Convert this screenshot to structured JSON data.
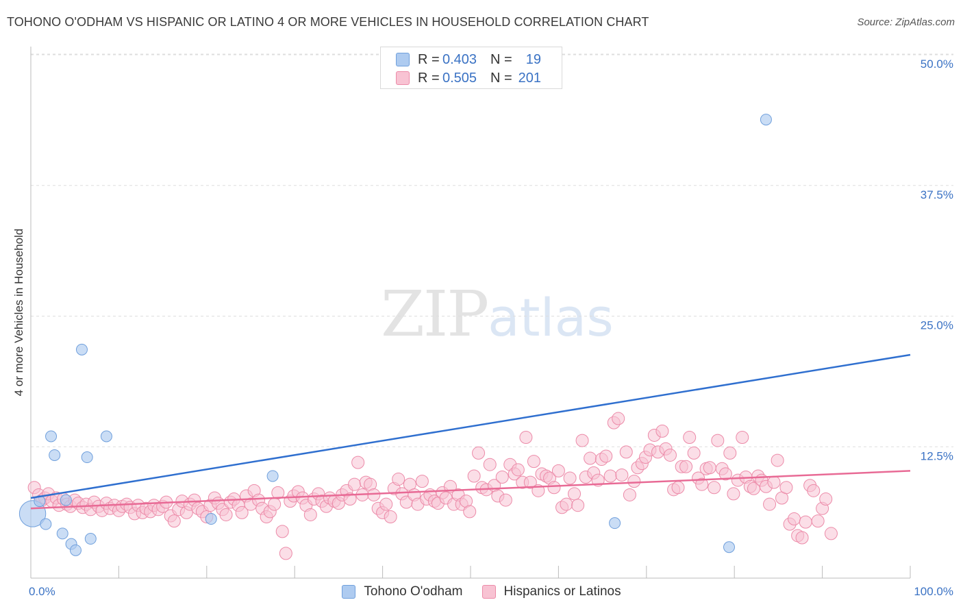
{
  "header": {
    "title": "TOHONO O'ODHAM VS HISPANIC OR LATINO 4 OR MORE VEHICLES IN HOUSEHOLD CORRELATION CHART",
    "source": "Source: ZipAtlas.com"
  },
  "watermark": {
    "zip": "ZIP",
    "atlas": "atlas"
  },
  "legend": {
    "series": [
      {
        "r_label": "R =",
        "r_value": "0.403",
        "n_label": "N =",
        "n_value": "19",
        "color": "#aecbf0",
        "border": "#6f9fdc"
      },
      {
        "r_label": "R =",
        "r_value": "0.505",
        "n_label": "N =",
        "n_value": "201",
        "color": "#f8c3d3",
        "border": "#ec8aa8"
      }
    ]
  },
  "colors": {
    "blue_fill": "#aecbf0",
    "blue_stroke": "#6f9fdc",
    "blue_line": "#2f6fcf",
    "pink_fill": "#f8c3d3",
    "pink_stroke": "#ec8aa8",
    "pink_line": "#e86a95",
    "tick_label": "#3a72c4",
    "grid": "#dddddd"
  },
  "chart_data": {
    "type": "scatter",
    "title": "TOHONO O'ODHAM VS HISPANIC OR LATINO 4 OR MORE VEHICLES IN HOUSEHOLD CORRELATION CHART",
    "xlabel": "",
    "ylabel": "4 or more Vehicles in Household",
    "xlim": [
      0,
      100
    ],
    "ylim": [
      0,
      50
    ],
    "x_tick_labels": [
      "0.0%",
      "100.0%"
    ],
    "y_ticks": [
      12.5,
      25.0,
      37.5,
      50.0
    ],
    "y_tick_labels": [
      "12.5%",
      "25.0%",
      "37.5%",
      "50.0%"
    ],
    "grid": true,
    "legend_position": "top-center",
    "series": [
      {
        "name": "Tohono O'odham",
        "color": "#aecbf0",
        "trend": {
          "x": [
            0,
            100
          ],
          "y": [
            7.6,
            21.3
          ]
        },
        "points": [
          [
            0.2,
            6.1,
            2.4
          ],
          [
            1.0,
            7.3,
            1
          ],
          [
            1.7,
            5.1,
            1
          ],
          [
            2.3,
            13.5,
            1
          ],
          [
            2.7,
            11.7,
            1
          ],
          [
            3.6,
            4.2,
            1
          ],
          [
            4.0,
            7.4,
            1
          ],
          [
            4.6,
            3.2,
            1
          ],
          [
            5.1,
            2.6,
            1
          ],
          [
            5.8,
            21.8,
            1
          ],
          [
            6.4,
            11.5,
            1
          ],
          [
            6.8,
            3.7,
            1
          ],
          [
            8.6,
            13.5,
            1
          ],
          [
            20.5,
            5.6,
            1
          ],
          [
            27.5,
            9.7,
            1
          ],
          [
            66.4,
            5.2,
            1
          ],
          [
            79.4,
            2.9,
            1
          ],
          [
            83.6,
            43.8,
            1
          ]
        ]
      },
      {
        "name": "Hispanics or Latinos",
        "color": "#f8c3d3",
        "trend": {
          "x": [
            0,
            100
          ],
          "y": [
            6.6,
            10.2
          ]
        },
        "points": [
          [
            0.4,
            8.6
          ],
          [
            0.9,
            7.9
          ],
          [
            1.3,
            7.4
          ],
          [
            1.6,
            7.6
          ],
          [
            2.0,
            8.0
          ],
          [
            2.4,
            7.3
          ],
          [
            2.9,
            7.6
          ],
          [
            3.2,
            6.9
          ],
          [
            3.7,
            7.5
          ],
          [
            4.1,
            7.0
          ],
          [
            4.5,
            6.8
          ],
          [
            5.0,
            7.4
          ],
          [
            5.4,
            7.1
          ],
          [
            5.9,
            6.7
          ],
          [
            6.3,
            7.0
          ],
          [
            6.8,
            6.5
          ],
          [
            7.2,
            7.2
          ],
          [
            7.7,
            6.8
          ],
          [
            8.1,
            6.4
          ],
          [
            8.6,
            7.1
          ],
          [
            9.0,
            6.6
          ],
          [
            9.5,
            6.9
          ],
          [
            10.0,
            6.4
          ],
          [
            10.4,
            6.8
          ],
          [
            10.9,
            7.0
          ],
          [
            11.3,
            6.7
          ],
          [
            11.8,
            6.1
          ],
          [
            12.2,
            6.9
          ],
          [
            12.7,
            6.2
          ],
          [
            13.1,
            6.6
          ],
          [
            13.6,
            6.3
          ],
          [
            14.0,
            6.9
          ],
          [
            14.5,
            6.5
          ],
          [
            15.0,
            6.8
          ],
          [
            15.4,
            7.2
          ],
          [
            15.9,
            5.9
          ],
          [
            16.3,
            5.4
          ],
          [
            16.8,
            6.5
          ],
          [
            17.2,
            7.3
          ],
          [
            17.7,
            6.2
          ],
          [
            18.1,
            7.0
          ],
          [
            18.6,
            7.4
          ],
          [
            19.0,
            6.6
          ],
          [
            19.5,
            6.3
          ],
          [
            20.0,
            5.8
          ],
          [
            20.4,
            6.9
          ],
          [
            20.9,
            7.6
          ],
          [
            21.3,
            7.1
          ],
          [
            21.8,
            6.5
          ],
          [
            22.2,
            6.0
          ],
          [
            22.7,
            7.2
          ],
          [
            23.1,
            7.5
          ],
          [
            23.6,
            6.9
          ],
          [
            24.0,
            6.2
          ],
          [
            24.5,
            7.8
          ],
          [
            25.0,
            7.0
          ],
          [
            25.4,
            8.3
          ],
          [
            25.9,
            7.4
          ],
          [
            26.3,
            6.6
          ],
          [
            26.8,
            5.8
          ],
          [
            27.2,
            6.3
          ],
          [
            27.7,
            7.0
          ],
          [
            28.1,
            8.1
          ],
          [
            28.6,
            4.4
          ],
          [
            29.0,
            2.3
          ],
          [
            29.5,
            7.3
          ],
          [
            29.9,
            7.8
          ],
          [
            30.4,
            8.2
          ],
          [
            30.9,
            7.6
          ],
          [
            31.3,
            6.9
          ],
          [
            31.8,
            6.0
          ],
          [
            32.2,
            7.5
          ],
          [
            32.7,
            8.0
          ],
          [
            33.1,
            7.3
          ],
          [
            33.6,
            6.8
          ],
          [
            34.0,
            7.6
          ],
          [
            34.5,
            7.3
          ],
          [
            35.0,
            7.1
          ],
          [
            35.4,
            7.9
          ],
          [
            35.9,
            8.3
          ],
          [
            36.3,
            7.5
          ],
          [
            36.8,
            8.9
          ],
          [
            37.2,
            11.0
          ],
          [
            37.7,
            7.9
          ],
          [
            38.1,
            9.1
          ],
          [
            38.6,
            8.9
          ],
          [
            39.0,
            7.9
          ],
          [
            39.5,
            6.6
          ],
          [
            40.0,
            6.2
          ],
          [
            40.4,
            7.0
          ],
          [
            40.9,
            5.8
          ],
          [
            41.3,
            8.5
          ],
          [
            41.8,
            9.4
          ],
          [
            42.2,
            8.0
          ],
          [
            42.7,
            7.2
          ],
          [
            43.1,
            8.9
          ],
          [
            43.6,
            7.9
          ],
          [
            44.0,
            7.0
          ],
          [
            44.5,
            9.2
          ],
          [
            45.0,
            7.5
          ],
          [
            45.4,
            7.9
          ],
          [
            45.9,
            7.3
          ],
          [
            46.3,
            7.1
          ],
          [
            46.8,
            8.1
          ],
          [
            47.2,
            7.6
          ],
          [
            47.7,
            8.7
          ],
          [
            48.1,
            7.0
          ],
          [
            48.6,
            7.9
          ],
          [
            49.0,
            7.0
          ],
          [
            49.5,
            7.3
          ],
          [
            49.9,
            6.3
          ],
          [
            50.4,
            9.7
          ],
          [
            50.9,
            11.9
          ],
          [
            51.3,
            8.6
          ],
          [
            51.8,
            8.4
          ],
          [
            52.2,
            10.8
          ],
          [
            52.7,
            8.8
          ],
          [
            53.1,
            7.8
          ],
          [
            53.6,
            9.6
          ],
          [
            54.0,
            7.4
          ],
          [
            54.5,
            10.8
          ],
          [
            55.0,
            9.9
          ],
          [
            55.4,
            10.3
          ],
          [
            55.9,
            9.1
          ],
          [
            56.3,
            13.4
          ],
          [
            56.8,
            9.1
          ],
          [
            57.2,
            11.1
          ],
          [
            57.7,
            8.3
          ],
          [
            58.1,
            9.9
          ],
          [
            58.6,
            9.7
          ],
          [
            59.0,
            9.5
          ],
          [
            59.5,
            8.6
          ],
          [
            60.0,
            10.2
          ],
          [
            60.4,
            6.7
          ],
          [
            60.9,
            7.0
          ],
          [
            61.3,
            9.5
          ],
          [
            61.8,
            8.0
          ],
          [
            62.2,
            6.9
          ],
          [
            62.7,
            13.1
          ],
          [
            63.1,
            9.6
          ],
          [
            63.6,
            11.4
          ],
          [
            64.0,
            10.0
          ],
          [
            64.5,
            9.3
          ],
          [
            64.9,
            11.3
          ],
          [
            65.4,
            11.6
          ],
          [
            65.9,
            9.7
          ],
          [
            66.3,
            14.8
          ],
          [
            66.8,
            15.2
          ],
          [
            67.2,
            9.8
          ],
          [
            67.7,
            12.0
          ],
          [
            68.1,
            7.9
          ],
          [
            68.6,
            9.2
          ],
          [
            69.0,
            10.5
          ],
          [
            69.5,
            10.9
          ],
          [
            69.9,
            11.5
          ],
          [
            70.4,
            12.2
          ],
          [
            70.9,
            13.6
          ],
          [
            71.3,
            12.0
          ],
          [
            71.8,
            14.0
          ],
          [
            72.2,
            12.3
          ],
          [
            72.7,
            11.7
          ],
          [
            73.1,
            8.4
          ],
          [
            73.6,
            8.6
          ],
          [
            74.0,
            10.6
          ],
          [
            74.5,
            10.6
          ],
          [
            74.9,
            13.4
          ],
          [
            75.4,
            11.9
          ],
          [
            75.9,
            9.5
          ],
          [
            76.3,
            8.9
          ],
          [
            76.8,
            10.4
          ],
          [
            77.2,
            10.5
          ],
          [
            77.7,
            8.6
          ],
          [
            78.1,
            13.1
          ],
          [
            78.6,
            10.4
          ],
          [
            79.0,
            9.9
          ],
          [
            79.5,
            11.9
          ],
          [
            79.9,
            8.0
          ],
          [
            80.4,
            9.3
          ],
          [
            80.9,
            13.4
          ],
          [
            81.3,
            9.6
          ],
          [
            81.8,
            8.7
          ],
          [
            82.2,
            8.5
          ],
          [
            82.7,
            9.7
          ],
          [
            83.1,
            9.3
          ],
          [
            83.6,
            8.7
          ],
          [
            84.0,
            7.0
          ],
          [
            84.5,
            9.1
          ],
          [
            84.9,
            11.2
          ],
          [
            85.4,
            7.6
          ],
          [
            85.9,
            8.6
          ],
          [
            86.3,
            5.1
          ],
          [
            86.8,
            5.6
          ],
          [
            87.2,
            4.0
          ],
          [
            87.7,
            3.8
          ],
          [
            88.1,
            5.3
          ],
          [
            88.6,
            8.8
          ],
          [
            89.0,
            8.3
          ],
          [
            89.5,
            5.4
          ],
          [
            90.0,
            6.6
          ],
          [
            90.4,
            7.5
          ],
          [
            91.0,
            4.2
          ]
        ]
      }
    ]
  },
  "bottom_legend": [
    "Tohono O'odham",
    "Hispanics or Latinos"
  ]
}
